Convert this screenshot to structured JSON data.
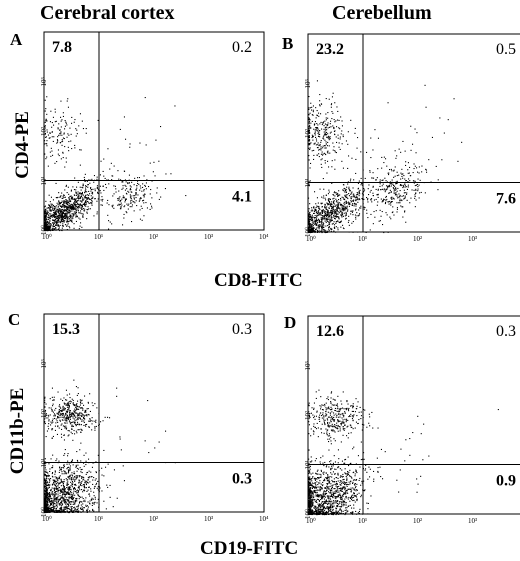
{
  "column_titles": [
    "Cerebral cortex",
    "Cerebellum"
  ],
  "row_x_titles": [
    "CD8-FITC",
    "CD19-FITC"
  ],
  "row_y_titles": [
    "CD4-PE",
    "CD11b-PE"
  ],
  "chart_data": [
    {
      "type": "scatter",
      "panel": "A",
      "title": "Cerebral cortex",
      "xlabel": "CD8-FITC",
      "ylabel": "CD4-PE",
      "x_scale": "log",
      "y_scale": "log",
      "xlim": [
        1,
        10000
      ],
      "ylim": [
        1,
        10000
      ],
      "x_ticks": [
        "10⁰",
        "10¹",
        "10²",
        "10³",
        "10⁴"
      ],
      "y_ticks": [
        "10⁰",
        "10¹",
        "10²",
        "10³"
      ],
      "quadrant_gate": [
        10,
        10
      ],
      "quadrant_percentages": {
        "upper_left": "7.8",
        "upper_right": "0.2",
        "lower_right": "4.1"
      }
    },
    {
      "type": "scatter",
      "panel": "B",
      "title": "Cerebellum",
      "xlabel": "CD8-FITC",
      "ylabel": "",
      "x_scale": "log",
      "y_scale": "log",
      "xlim": [
        1,
        10000
      ],
      "ylim": [
        1,
        10000
      ],
      "x_ticks": [
        "10⁰",
        "10¹",
        "10²",
        "10³",
        "10⁴"
      ],
      "y_ticks": [
        "10⁰",
        "10¹",
        "10²",
        "10³"
      ],
      "quadrant_gate": [
        10,
        10
      ],
      "quadrant_percentages": {
        "upper_left": "23.2",
        "upper_right": "0.5",
        "lower_right": "7.6"
      }
    },
    {
      "type": "scatter",
      "panel": "C",
      "title": "",
      "xlabel": "CD19-FITC",
      "ylabel": "CD11b-PE",
      "x_scale": "log",
      "y_scale": "log",
      "xlim": [
        1,
        10000
      ],
      "ylim": [
        1,
        10000
      ],
      "x_ticks": [
        "10⁰",
        "10¹",
        "10²",
        "10³",
        "10⁴"
      ],
      "y_ticks": [
        "10⁰",
        "10¹",
        "10²",
        "10³"
      ],
      "quadrant_gate": [
        10,
        10
      ],
      "quadrant_percentages": {
        "upper_left": "15.3",
        "upper_right": "0.3",
        "lower_right": "0.3"
      }
    },
    {
      "type": "scatter",
      "panel": "D",
      "title": "",
      "xlabel": "CD19-FITC",
      "ylabel": "",
      "x_scale": "log",
      "y_scale": "log",
      "xlim": [
        1,
        10000
      ],
      "ylim": [
        1,
        10000
      ],
      "x_ticks": [
        "10⁰",
        "10¹",
        "10²",
        "10³",
        "10⁴"
      ],
      "y_ticks": [
        "10⁰",
        "10¹",
        "10²",
        "10³"
      ],
      "quadrant_gate": [
        10,
        10
      ],
      "quadrant_percentages": {
        "upper_left": "12.6",
        "upper_right": "0.3",
        "lower_right": "0.9"
      }
    }
  ]
}
